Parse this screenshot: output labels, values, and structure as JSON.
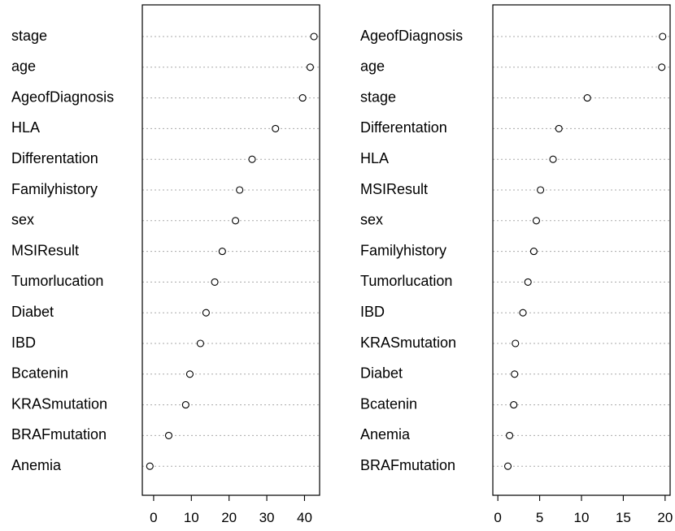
{
  "chart_data": [
    {
      "type": "dotplot",
      "categories": [
        "stage",
        "age",
        "AgeofDiagnosis",
        "HLA",
        "Differentation",
        "Familyhistory",
        "sex",
        "MSIResult",
        "Tumorlucation",
        "Diabet",
        "IBD",
        "Bcatenin",
        "KRASmutation",
        "BRAFmutation",
        "Anemia"
      ],
      "values": [
        42.5,
        41.5,
        39.5,
        32.3,
        26.1,
        22.8,
        21.7,
        18.2,
        16.2,
        13.9,
        12.4,
        9.6,
        8.5,
        4.0,
        -1.0
      ],
      "xlim": [
        -3,
        44
      ],
      "xticks": [
        0,
        10,
        20,
        30,
        40
      ],
      "grid": "dotted horizontal lines",
      "title": "",
      "xlabel": "",
      "ylabel": ""
    },
    {
      "type": "dotplot",
      "categories": [
        "AgeofDiagnosis",
        "age",
        "stage",
        "Differentation",
        "HLA",
        "MSIResult",
        "sex",
        "Familyhistory",
        "Tumorlucation",
        "IBD",
        "KRASmutation",
        "Diabet",
        "Bcatenin",
        "Anemia",
        "BRAFmutation"
      ],
      "values": [
        19.7,
        19.6,
        10.7,
        7.3,
        6.6,
        5.1,
        4.6,
        4.3,
        3.6,
        3.0,
        2.1,
        2.0,
        1.9,
        1.4,
        1.2
      ],
      "xlim": [
        -0.6,
        20.6
      ],
      "xticks": [
        0,
        5,
        10,
        15,
        20
      ],
      "grid": "dotted horizontal lines",
      "title": "",
      "xlabel": "",
      "ylabel": ""
    }
  ]
}
